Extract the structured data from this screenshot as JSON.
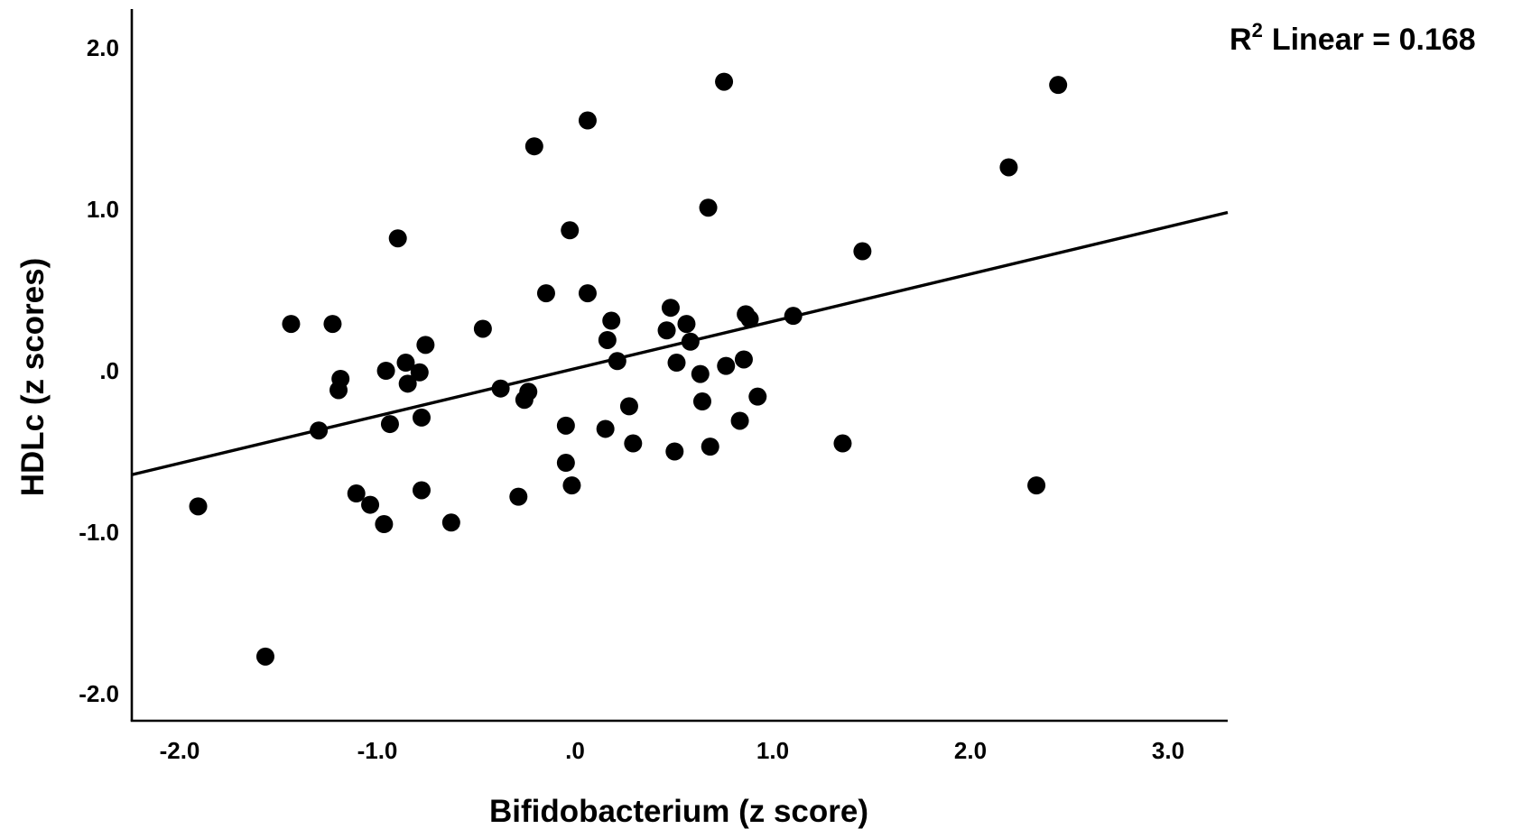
{
  "chart_data": {
    "type": "scatter",
    "xlabel": "Bifidobacterium (z score)",
    "ylabel": "HDLc (z scores)",
    "xlim": [
      -2.3,
      3.25
    ],
    "ylim": [
      -2.2,
      2.25
    ],
    "x_ticks": [
      -2.0,
      -1.0,
      0.0,
      1.0,
      2.0,
      3.0
    ],
    "x_tick_labels": [
      "-2.0",
      "-1.0",
      ".0",
      "1.0",
      "2.0",
      "3.0"
    ],
    "y_ticks": [
      -2.0,
      -1.0,
      0.0,
      1.0,
      2.0
    ],
    "y_tick_labels": [
      "-2.0",
      "-1.0",
      ".0",
      "1.0",
      "2.0"
    ],
    "fit_annotation": {
      "prefix": "R",
      "superscript": "2",
      "text": "Linear = 0.168"
    },
    "fit_line": {
      "slope": 0.293,
      "intercept": 0.017
    },
    "points": [
      {
        "x": -1.92,
        "y": -0.84
      },
      {
        "x": -1.58,
        "y": -1.77
      },
      {
        "x": -1.45,
        "y": 0.29
      },
      {
        "x": -1.31,
        "y": -0.37
      },
      {
        "x": -1.24,
        "y": 0.29
      },
      {
        "x": -1.21,
        "y": -0.12
      },
      {
        "x": -1.2,
        "y": -0.05
      },
      {
        "x": -1.12,
        "y": -0.76
      },
      {
        "x": -1.05,
        "y": -0.83
      },
      {
        "x": -0.98,
        "y": -0.95
      },
      {
        "x": -0.97,
        "y": 0.0
      },
      {
        "x": -0.95,
        "y": -0.33
      },
      {
        "x": -0.91,
        "y": 0.82
      },
      {
        "x": -0.87,
        "y": 0.05
      },
      {
        "x": -0.86,
        "y": -0.08
      },
      {
        "x": -0.8,
        "y": -0.01
      },
      {
        "x": -0.79,
        "y": -0.29
      },
      {
        "x": -0.79,
        "y": -0.74
      },
      {
        "x": -0.77,
        "y": 0.16
      },
      {
        "x": -0.64,
        "y": -0.94
      },
      {
        "x": -0.48,
        "y": 0.26
      },
      {
        "x": -0.39,
        "y": -0.11
      },
      {
        "x": -0.3,
        "y": -0.78
      },
      {
        "x": -0.27,
        "y": -0.18
      },
      {
        "x": -0.25,
        "y": -0.13
      },
      {
        "x": -0.22,
        "y": 1.39
      },
      {
        "x": -0.16,
        "y": 0.48
      },
      {
        "x": -0.06,
        "y": -0.34
      },
      {
        "x": -0.06,
        "y": -0.57
      },
      {
        "x": -0.04,
        "y": 0.87
      },
      {
        "x": -0.03,
        "y": -0.71
      },
      {
        "x": 0.05,
        "y": 0.48
      },
      {
        "x": 0.05,
        "y": 1.55
      },
      {
        "x": 0.14,
        "y": -0.36
      },
      {
        "x": 0.15,
        "y": 0.19
      },
      {
        "x": 0.17,
        "y": 0.31
      },
      {
        "x": 0.2,
        "y": 0.06
      },
      {
        "x": 0.26,
        "y": -0.22
      },
      {
        "x": 0.28,
        "y": -0.45
      },
      {
        "x": 0.45,
        "y": 0.25
      },
      {
        "x": 0.47,
        "y": 0.39
      },
      {
        "x": 0.49,
        "y": -0.5
      },
      {
        "x": 0.5,
        "y": 0.05
      },
      {
        "x": 0.55,
        "y": 0.29
      },
      {
        "x": 0.57,
        "y": 0.18
      },
      {
        "x": 0.62,
        "y": -0.02
      },
      {
        "x": 0.63,
        "y": -0.19
      },
      {
        "x": 0.66,
        "y": 1.01
      },
      {
        "x": 0.67,
        "y": -0.47
      },
      {
        "x": 0.74,
        "y": 1.79
      },
      {
        "x": 0.75,
        "y": 0.03
      },
      {
        "x": 0.82,
        "y": -0.31
      },
      {
        "x": 0.84,
        "y": 0.07
      },
      {
        "x": 0.85,
        "y": 0.35
      },
      {
        "x": 0.87,
        "y": 0.32
      },
      {
        "x": 0.91,
        "y": -0.16
      },
      {
        "x": 1.09,
        "y": 0.34
      },
      {
        "x": 1.34,
        "y": -0.45
      },
      {
        "x": 1.44,
        "y": 0.74
      },
      {
        "x": 2.18,
        "y": 1.26
      },
      {
        "x": 2.32,
        "y": -0.71
      },
      {
        "x": 2.43,
        "y": 1.77
      }
    ]
  }
}
